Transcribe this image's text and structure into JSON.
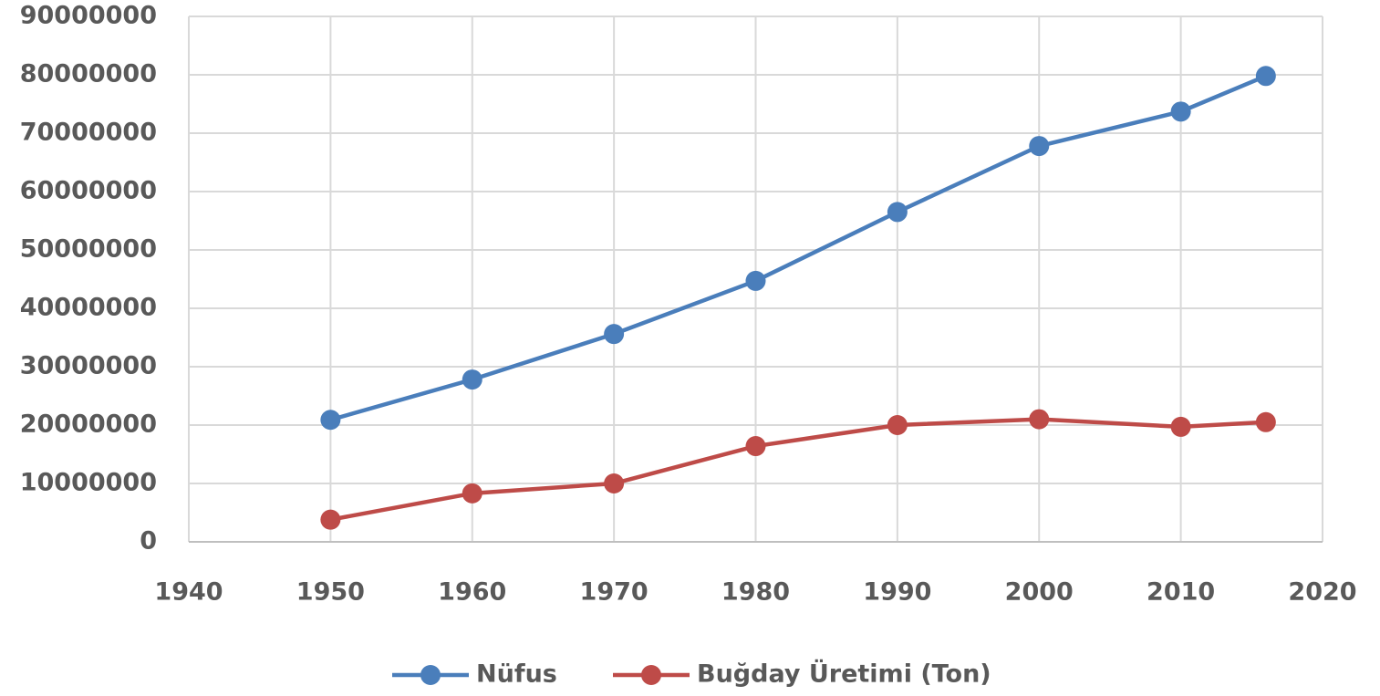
{
  "chart_data": {
    "type": "line",
    "x": [
      1950,
      1960,
      1970,
      1980,
      1990,
      2000,
      2010,
      2016
    ],
    "series": [
      {
        "name": "Nüfus",
        "color": "#4a7ebb",
        "values": [
          20900000,
          27800000,
          35600000,
          44700000,
          56500000,
          67800000,
          73700000,
          79800000
        ]
      },
      {
        "name": "Buğday Üretimi (Ton)",
        "color": "#be4b48",
        "values": [
          3800000,
          8300000,
          10000000,
          16400000,
          20000000,
          21000000,
          19700000,
          20500000
        ]
      }
    ],
    "xlim": [
      1940,
      2020
    ],
    "xticks": [
      1940,
      1950,
      1960,
      1970,
      1980,
      1990,
      2000,
      2010,
      2020
    ],
    "ylim": [
      0,
      90000000
    ],
    "yticks": [
      0,
      10000000,
      20000000,
      30000000,
      40000000,
      50000000,
      60000000,
      70000000,
      80000000,
      90000000
    ],
    "grid": true,
    "legend": "bottom"
  }
}
